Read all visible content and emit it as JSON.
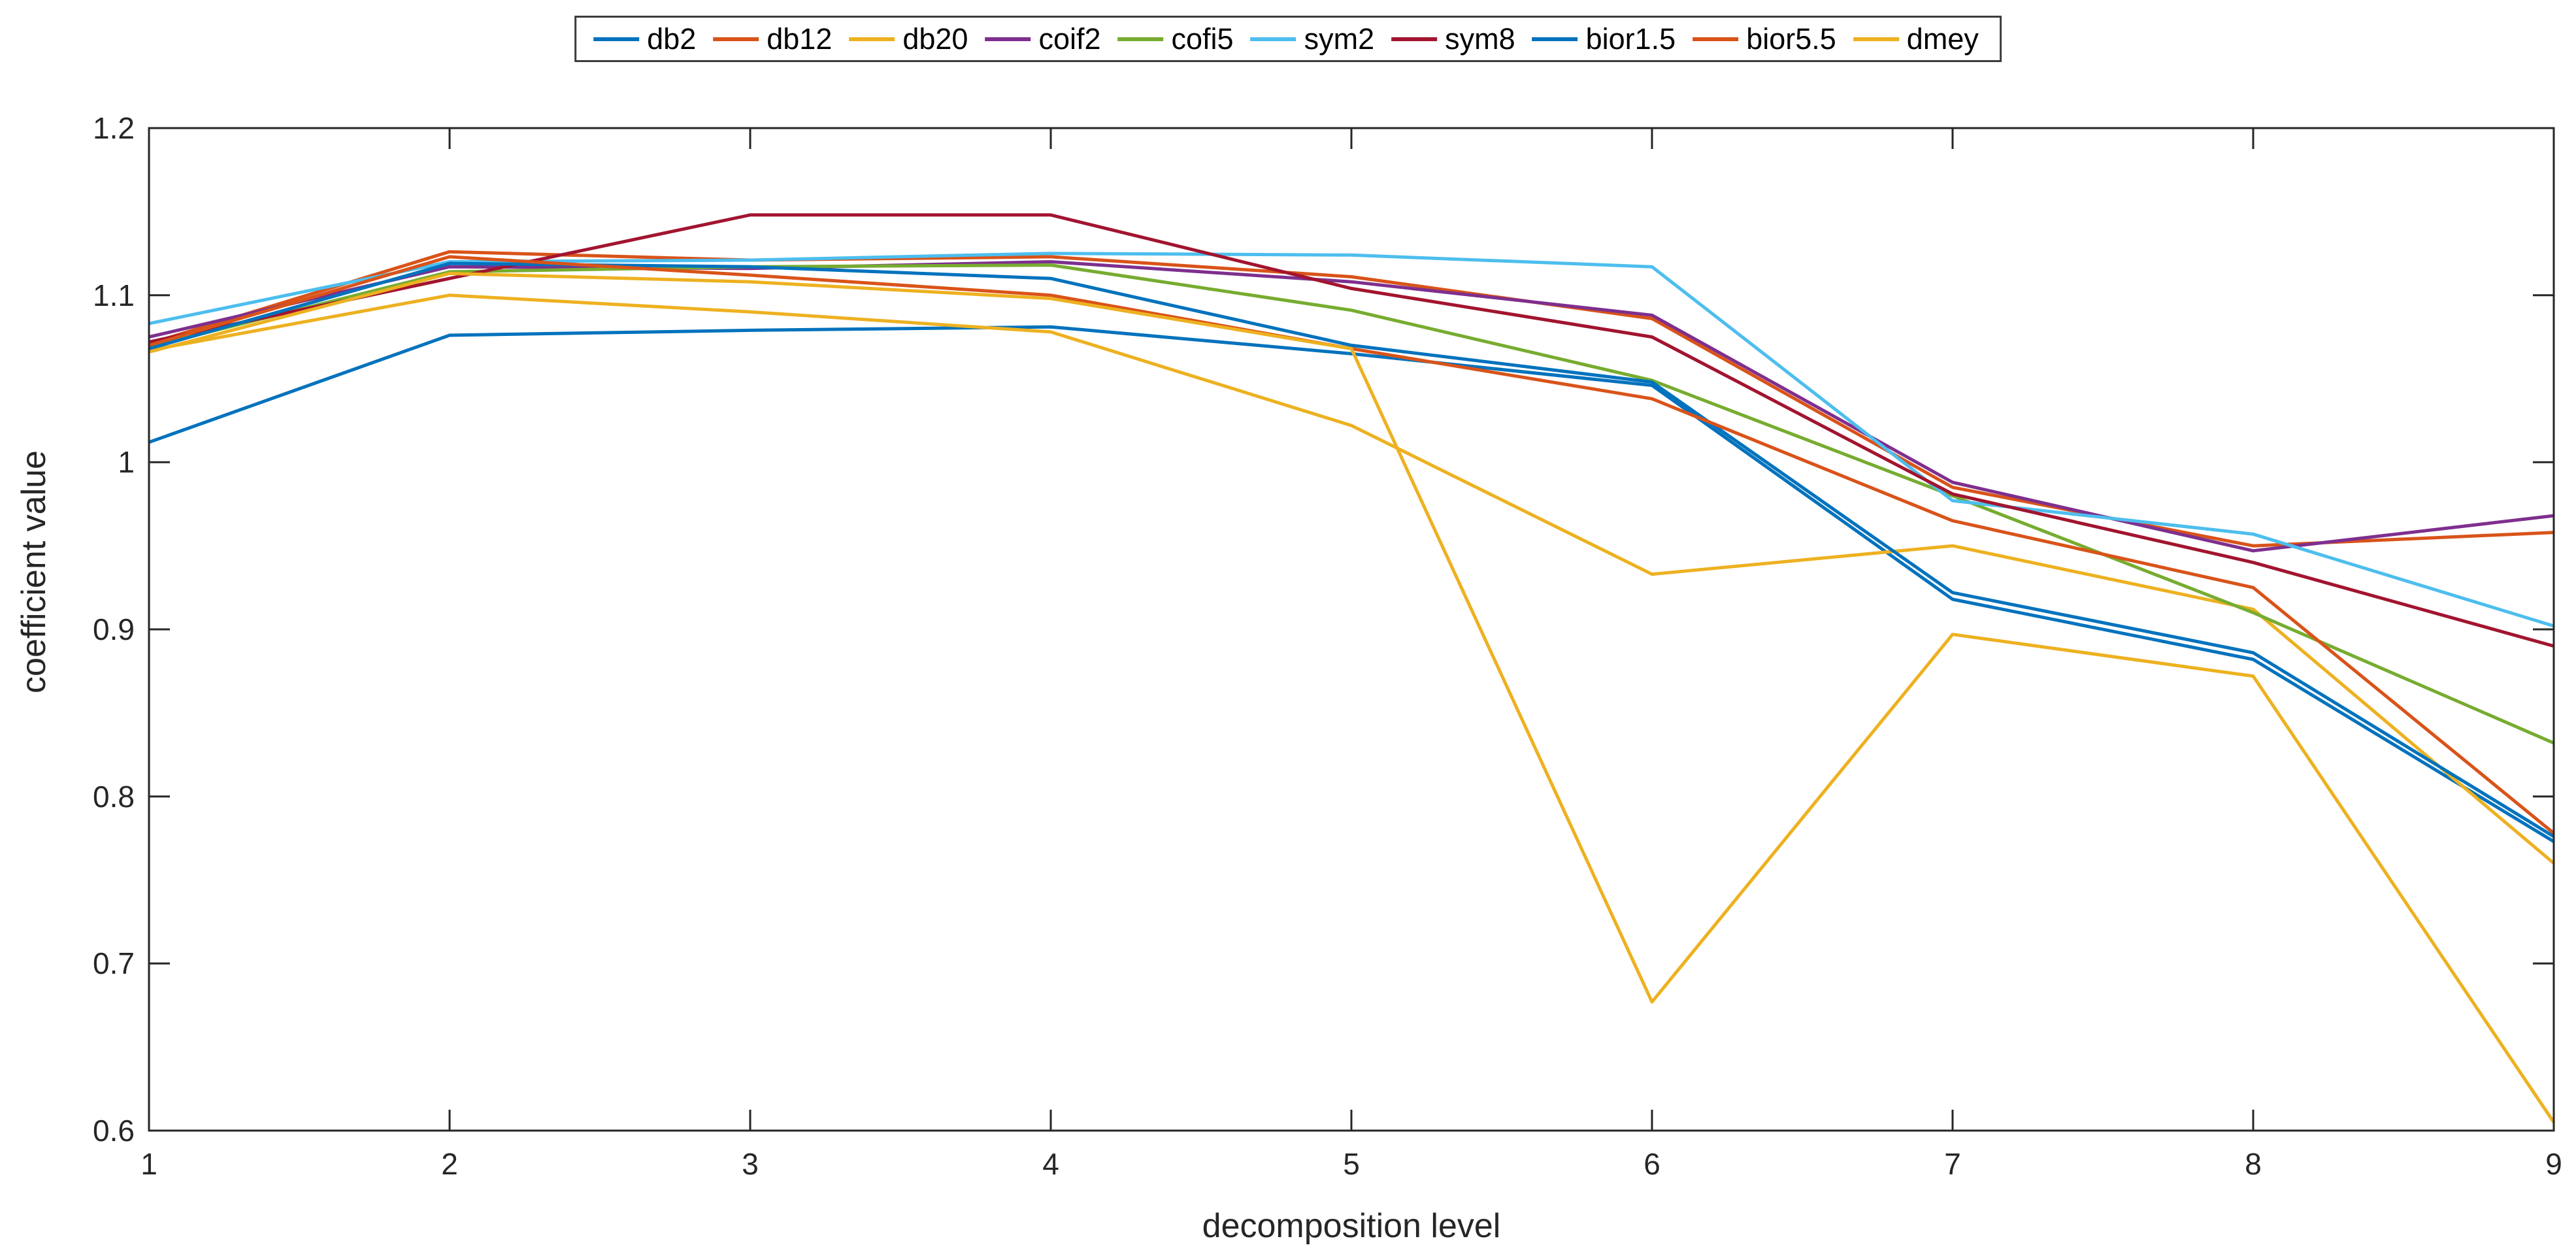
{
  "figure": {
    "background_color": "#ffffff",
    "axes_color": "#262626",
    "legend_border_color": "#3b3b3b"
  },
  "chart_data": {
    "type": "line",
    "title": "",
    "xlabel": "decomposition level",
    "ylabel": "coefficient value",
    "x": [
      1,
      2,
      3,
      4,
      5,
      6,
      7,
      8,
      9
    ],
    "xlim": [
      1,
      9
    ],
    "ylim": [
      0.6,
      1.2
    ],
    "xticks": [
      "1",
      "2",
      "3",
      "4",
      "5",
      "6",
      "7",
      "8",
      "9"
    ],
    "yticks": [
      "0.6",
      "0.7",
      "0.8",
      "0.9",
      "1",
      "1.1",
      "1.2"
    ],
    "ytick_values": [
      0.6,
      0.7,
      0.8,
      0.9,
      1.0,
      1.1,
      1.2
    ],
    "grid": false,
    "legend_position": "top-center-horizontal",
    "series": [
      {
        "name": "db2",
        "color": "#0072BD",
        "values": [
          1.012,
          1.076,
          1.079,
          1.081,
          1.065,
          1.046,
          0.918,
          0.882,
          0.773
        ]
      },
      {
        "name": "db12",
        "color": "#D95319",
        "values": [
          1.071,
          1.126,
          1.121,
          1.123,
          1.111,
          1.086,
          0.985,
          0.95,
          0.958
        ]
      },
      {
        "name": "db20",
        "color": "#EDB120",
        "values": [
          1.067,
          1.1,
          1.09,
          1.078,
          1.022,
          0.933,
          0.95,
          0.912,
          0.76
        ]
      },
      {
        "name": "coif2",
        "color": "#7E2F8E",
        "values": [
          1.075,
          1.117,
          1.116,
          1.12,
          1.108,
          1.088,
          0.988,
          0.947,
          0.968
        ]
      },
      {
        "name": "cofi5",
        "color": "#77AC30",
        "values": [
          1.069,
          1.114,
          1.117,
          1.118,
          1.091,
          1.049,
          0.98,
          0.91,
          0.832
        ]
      },
      {
        "name": "sym2",
        "color": "#4DBEEE",
        "values": [
          1.083,
          1.12,
          1.121,
          1.125,
          1.124,
          1.117,
          0.977,
          0.957,
          0.902
        ]
      },
      {
        "name": "sym8",
        "color": "#A2142F",
        "values": [
          1.072,
          1.11,
          1.148,
          1.148,
          1.104,
          1.075,
          0.981,
          0.94,
          0.89
        ]
      },
      {
        "name": "bior1.5",
        "color": "#0072BD",
        "values": [
          1.068,
          1.119,
          1.117,
          1.11,
          1.07,
          1.048,
          0.922,
          0.886,
          0.776
        ]
      },
      {
        "name": "bior5.5",
        "color": "#D95319",
        "values": [
          1.07,
          1.123,
          1.112,
          1.1,
          1.068,
          1.038,
          0.965,
          0.925,
          0.778
        ]
      },
      {
        "name": "dmey",
        "color": "#EDB120",
        "values": [
          1.066,
          1.113,
          1.108,
          1.098,
          1.068,
          0.677,
          0.897,
          0.872,
          0.605
        ]
      }
    ]
  }
}
